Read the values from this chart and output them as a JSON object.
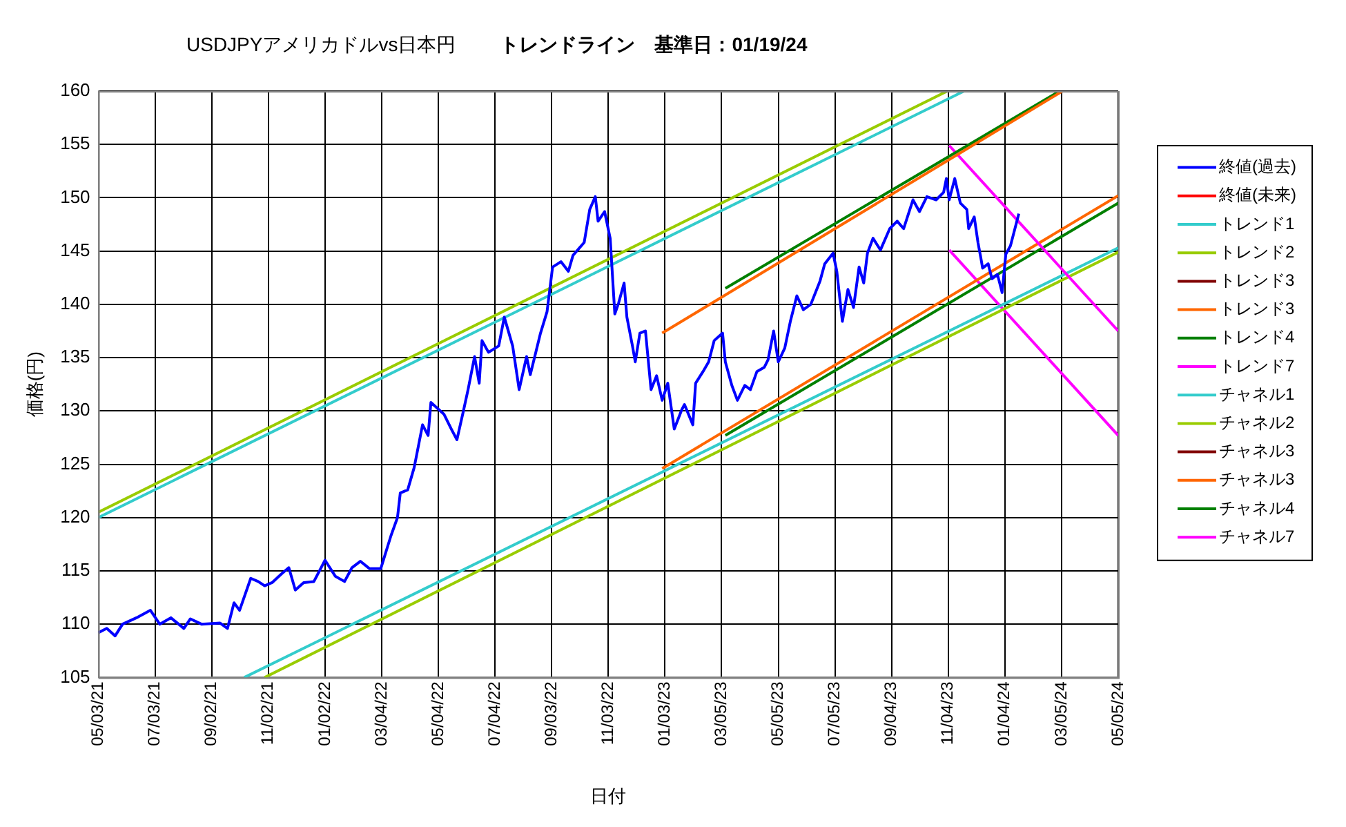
{
  "chart_data": {
    "type": "line",
    "title": "USDJPYアメリカドルvs日本円",
    "subtitle": "トレンドライン　基準日：01/19/24",
    "xlabel": "日付",
    "ylabel": "価格(円)",
    "xlim": [
      "2021-05-03",
      "2024-05-05"
    ],
    "xticks": [
      {
        "value": "2021-05-03",
        "label": "05/03/21"
      },
      {
        "value": "2021-07-03",
        "label": "07/03/21"
      },
      {
        "value": "2021-09-02",
        "label": "09/02/21"
      },
      {
        "value": "2021-11-02",
        "label": "11/02/21"
      },
      {
        "value": "2022-01-02",
        "label": "01/02/22"
      },
      {
        "value": "2022-03-04",
        "label": "03/04/22"
      },
      {
        "value": "2022-05-04",
        "label": "05/04/22"
      },
      {
        "value": "2022-07-04",
        "label": "07/04/22"
      },
      {
        "value": "2022-09-03",
        "label": "09/03/22"
      },
      {
        "value": "2022-11-03",
        "label": "11/03/22"
      },
      {
        "value": "2023-01-03",
        "label": "01/03/23"
      },
      {
        "value": "2023-03-05",
        "label": "03/05/23"
      },
      {
        "value": "2023-05-05",
        "label": "05/05/23"
      },
      {
        "value": "2023-07-05",
        "label": "07/05/23"
      },
      {
        "value": "2023-09-04",
        "label": "09/04/23"
      },
      {
        "value": "2023-11-04",
        "label": "11/04/23"
      },
      {
        "value": "2024-01-04",
        "label": "01/04/24"
      },
      {
        "value": "2024-03-05",
        "label": "03/05/24"
      },
      {
        "value": "2024-05-05",
        "label": "05/05/24"
      }
    ],
    "ylim": [
      105,
      160
    ],
    "yticks": [
      105,
      110,
      115,
      120,
      125,
      130,
      135,
      140,
      145,
      150,
      155,
      160
    ],
    "grid": true,
    "legend": "right",
    "marker": "none",
    "series": [
      {
        "name": "終値(過去)",
        "color": "#0000ff",
        "x": [
          "2021-05-03",
          "2021-05-12",
          "2021-05-21",
          "2021-05-29",
          "2021-06-13",
          "2021-06-28",
          "2021-07-08",
          "2021-07-20",
          "2021-08-03",
          "2021-08-10",
          "2021-08-22",
          "2021-09-11",
          "2021-09-19",
          "2021-09-26",
          "2021-10-02",
          "2021-10-14",
          "2021-10-22",
          "2021-10-29",
          "2021-11-06",
          "2021-11-16",
          "2021-11-24",
          "2021-12-01",
          "2021-12-10",
          "2021-12-21",
          "2022-01-02",
          "2022-01-13",
          "2022-01-23",
          "2022-01-31",
          "2022-02-09",
          "2022-02-19",
          "2022-03-03",
          "2022-03-09",
          "2022-03-14",
          "2022-03-21",
          "2022-03-24",
          "2022-04-01",
          "2022-04-08",
          "2022-04-17",
          "2022-04-23",
          "2022-04-26",
          "2022-05-10",
          "2022-05-18",
          "2022-05-24",
          "2022-05-31",
          "2022-06-05",
          "2022-06-12",
          "2022-06-17",
          "2022-06-20",
          "2022-06-27",
          "2022-07-08",
          "2022-07-14",
          "2022-07-23",
          "2022-07-30",
          "2022-08-07",
          "2022-08-11",
          "2022-08-22",
          "2022-08-29",
          "2022-09-04",
          "2022-09-13",
          "2022-09-21",
          "2022-09-26",
          "2022-10-08",
          "2022-10-14",
          "2022-10-20",
          "2022-10-23",
          "2022-10-30",
          "2022-11-05",
          "2022-11-10",
          "2022-11-14",
          "2022-11-20",
          "2022-11-23",
          "2022-11-29",
          "2022-12-02",
          "2022-12-07",
          "2022-12-13",
          "2022-12-19",
          "2022-12-25",
          "2022-12-31",
          "2023-01-06",
          "2023-01-13",
          "2023-01-21",
          "2023-01-24",
          "2023-02-02",
          "2023-02-05",
          "2023-02-13",
          "2023-02-19",
          "2023-02-25",
          "2023-03-06",
          "2023-03-09",
          "2023-03-16",
          "2023-03-22",
          "2023-03-30",
          "2023-04-05",
          "2023-04-12",
          "2023-04-20",
          "2023-04-24",
          "2023-04-30",
          "2023-05-05",
          "2023-05-12",
          "2023-05-18",
          "2023-05-25",
          "2023-06-01",
          "2023-06-09",
          "2023-06-19",
          "2023-06-24",
          "2023-07-03",
          "2023-07-07",
          "2023-07-13",
          "2023-07-19",
          "2023-07-25",
          "2023-07-31",
          "2023-08-05",
          "2023-08-09",
          "2023-08-15",
          "2023-08-23",
          "2023-09-02",
          "2023-09-10",
          "2023-09-17",
          "2023-09-27",
          "2023-10-04",
          "2023-10-12",
          "2023-10-22",
          "2023-10-30",
          "2023-11-02",
          "2023-11-05",
          "2023-11-11",
          "2023-11-17",
          "2023-11-24",
          "2023-11-26",
          "2023-12-02",
          "2023-12-06",
          "2023-12-09",
          "2023-12-11",
          "2023-12-17",
          "2023-12-21",
          "2023-12-27",
          "2024-01-01",
          "2024-01-05",
          "2024-01-10",
          "2024-01-16",
          "2024-01-19"
        ],
        "values": [
          109.2,
          109.6,
          108.9,
          110,
          110.6,
          111.3,
          110,
          110.6,
          109.6,
          110.5,
          110,
          110.1,
          109.6,
          112,
          111.3,
          114.3,
          114,
          113.6,
          113.9,
          114.7,
          115.3,
          113.2,
          113.9,
          114,
          116,
          114.5,
          114,
          115.3,
          115.9,
          115.2,
          115.2,
          116.9,
          118.3,
          120,
          122.3,
          122.6,
          124.7,
          128.7,
          127.7,
          130.8,
          129.7,
          128.3,
          127.3,
          130,
          132,
          135.1,
          132.6,
          136.6,
          135.5,
          136.1,
          138.8,
          136.1,
          132,
          135.1,
          133.4,
          137.3,
          139.3,
          143.5,
          144,
          143.1,
          144.6,
          145.8,
          148.9,
          150.1,
          147.8,
          148.7,
          146.2,
          139.1,
          140.1,
          142,
          138.8,
          136.1,
          134.6,
          137.3,
          137.5,
          132,
          133.3,
          131,
          132.6,
          128.3,
          130.1,
          130.6,
          128.7,
          132.6,
          133.7,
          134.6,
          136.6,
          137.3,
          134.6,
          132.4,
          131,
          132.4,
          132,
          133.7,
          134.1,
          134.8,
          137.5,
          134.6,
          135.9,
          138.4,
          140.8,
          139.5,
          140,
          142.2,
          143.8,
          144.8,
          143.1,
          138.4,
          141.4,
          139.7,
          143.5,
          142,
          144.8,
          146.2,
          145.1,
          147.1,
          147.8,
          147.1,
          149.8,
          148.7,
          150.1,
          149.8,
          150.5,
          151.8,
          149.8,
          151.8,
          149.5,
          148.9,
          147.1,
          148.2,
          145.8,
          144.4,
          143.4,
          143.8,
          142.4,
          142.8,
          141.1,
          144.7,
          145.5,
          147.5,
          148.5
        ]
      },
      {
        "name": "終値(未来)",
        "color": "#ff0000"
      },
      {
        "name": "トレンド1",
        "color": "#33cccc",
        "x": [
          "2021-05-03",
          "2023-11-21"
        ],
        "values": [
          120,
          160
        ]
      },
      {
        "name": "トレンド2",
        "color": "#99cc00",
        "x": [
          "2021-05-03",
          "2023-11-03"
        ],
        "values": [
          120.5,
          160
        ]
      },
      {
        "name": "トレンド3",
        "color": "#800000"
      },
      {
        "name": "トレンド3",
        "color": "#ff6600",
        "x": [
          "2022-12-31",
          "2024-03-06"
        ],
        "values": [
          137.3,
          160
        ]
      },
      {
        "name": "トレンド4",
        "color": "#008000",
        "x": [
          "2023-03-09",
          "2024-03-03"
        ],
        "values": [
          141.5,
          160
        ]
      },
      {
        "name": "トレンド7",
        "color": "#ff00ff",
        "x": [
          "2023-11-05",
          "2024-05-05"
        ],
        "values": [
          154.9,
          137.5
        ]
      },
      {
        "name": "チャネル1",
        "color": "#33cccc",
        "x": [
          "2021-10-07",
          "2024-05-05"
        ],
        "values": [
          105,
          145.3
        ]
      },
      {
        "name": "チャネル2",
        "color": "#99cc00",
        "x": [
          "2021-10-29",
          "2024-05-05"
        ],
        "values": [
          105,
          144.9
        ]
      },
      {
        "name": "チャネル3",
        "color": "#800000"
      },
      {
        "name": "チャネル3",
        "color": "#ff6600",
        "x": [
          "2022-12-31",
          "2024-05-05"
        ],
        "values": [
          124.6,
          150.2
        ]
      },
      {
        "name": "チャネル4",
        "color": "#008000",
        "x": [
          "2023-03-09",
          "2024-05-05"
        ],
        "values": [
          127.7,
          149.5
        ]
      },
      {
        "name": "チャネル7",
        "color": "#ff00ff",
        "x": [
          "2023-11-05",
          "2024-05-05"
        ],
        "values": [
          145.1,
          127.7
        ]
      }
    ]
  }
}
